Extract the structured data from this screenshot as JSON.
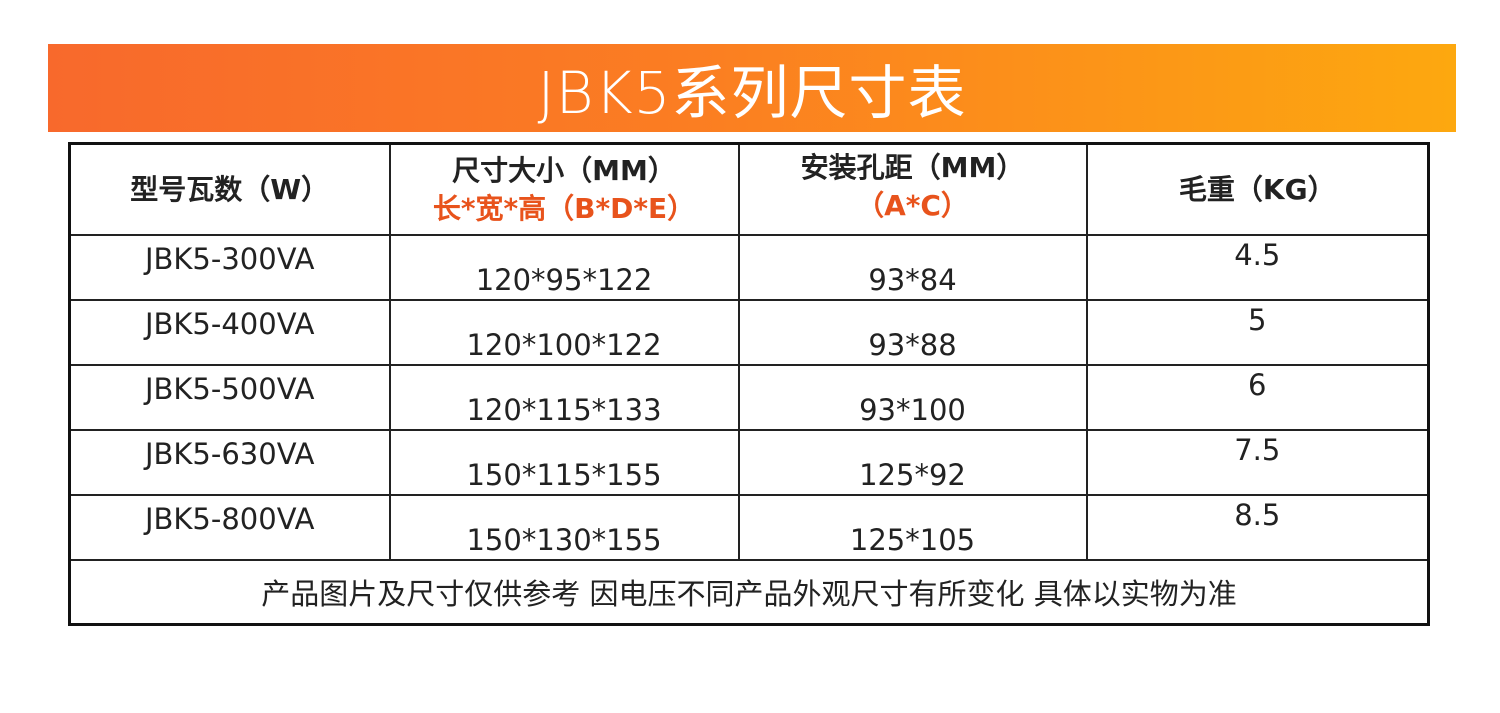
{
  "title": "JBK5系列尺寸表",
  "colors": {
    "banner_start": "#f8692c",
    "banner_end": "#fda80f",
    "highlight": "#e8531c"
  },
  "headers": [
    {
      "line1": "型号瓦数（W）",
      "line2": ""
    },
    {
      "line1": "尺寸大小（MM）",
      "line2": "长*宽*高（B*D*E）"
    },
    {
      "line1": "安装孔距（MM）",
      "line2": "（A*C）"
    },
    {
      "line1": "毛重（KG）",
      "line2": ""
    }
  ],
  "rows": [
    [
      "JBK5-300VA",
      "120*95*122",
      "93*84",
      "4.5"
    ],
    [
      "JBK5-400VA",
      "120*100*122",
      "93*88",
      "5"
    ],
    [
      "JBK5-500VA",
      "120*115*133",
      "93*100",
      "6"
    ],
    [
      "JBK5-630VA",
      "150*115*155",
      "125*92",
      "7.5"
    ],
    [
      "JBK5-800VA",
      "150*130*155",
      "125*105",
      "8.5"
    ]
  ],
  "note": "产品图片及尺寸仅供参考 因电压不同产品外观尺寸有所变化 具体以实物为准"
}
